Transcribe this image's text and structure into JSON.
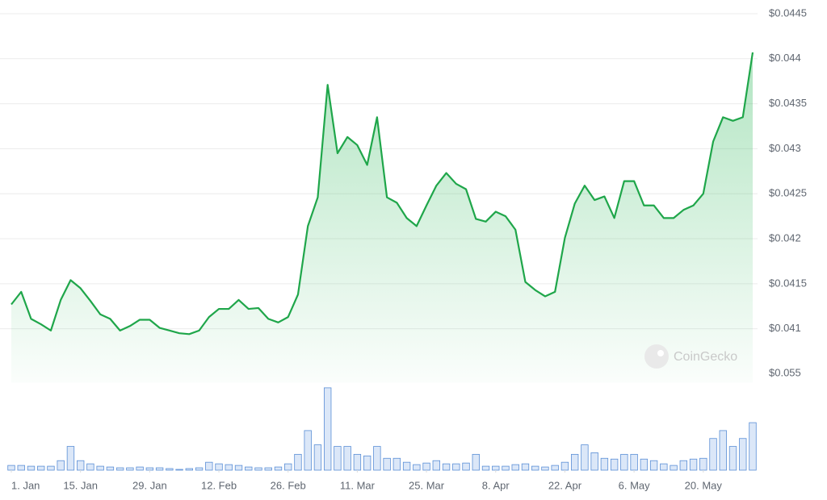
{
  "watermark": "CoinGecko",
  "chart_data": [
    {
      "type": "line",
      "color": "#1fa64a",
      "grid": true,
      "area": true,
      "x": [
        0,
        2,
        4,
        6,
        8,
        10,
        12,
        14,
        16,
        18,
        20,
        22,
        24,
        26,
        28,
        30,
        32,
        34,
        36,
        38,
        40,
        42,
        44,
        46,
        48,
        50,
        52,
        54,
        56,
        58,
        60,
        62,
        64,
        66,
        68,
        70,
        72,
        74,
        76,
        78,
        80,
        82,
        84,
        86,
        88,
        90,
        92,
        94,
        96,
        98,
        100,
        102,
        104,
        106,
        108,
        110,
        112,
        114,
        116,
        118,
        120,
        122,
        124,
        126,
        128,
        130,
        132,
        134,
        136,
        138,
        140,
        142,
        144,
        146,
        148,
        150
      ],
      "values": [
        0.04127,
        0.04141,
        0.04111,
        0.04105,
        0.04098,
        0.04132,
        0.04154,
        0.04145,
        0.04131,
        0.04116,
        0.04111,
        0.04098,
        0.04103,
        0.0411,
        0.0411,
        0.04101,
        0.04098,
        0.04095,
        0.04094,
        0.04098,
        0.04113,
        0.04122,
        0.04122,
        0.04132,
        0.04122,
        0.04123,
        0.04111,
        0.04107,
        0.04113,
        0.04138,
        0.04214,
        0.04246,
        0.04371,
        0.04295,
        0.04313,
        0.04304,
        0.04282,
        0.04335,
        0.04246,
        0.0424,
        0.04223,
        0.04214,
        0.04237,
        0.04259,
        0.04273,
        0.04261,
        0.04255,
        0.04222,
        0.04219,
        0.0423,
        0.04225,
        0.0421,
        0.04152,
        0.04143,
        0.04136,
        0.04141,
        0.04201,
        0.04239,
        0.04259,
        0.04243,
        0.04247,
        0.04223,
        0.04264,
        0.04264,
        0.04237,
        0.04237,
        0.04223,
        0.04223,
        0.04232,
        0.04237,
        0.0425,
        0.04308,
        0.04335,
        0.04331,
        0.04335,
        0.04407
      ],
      "xlim": [
        0,
        150
      ],
      "ylim": [
        0.0404,
        0.0445
      ],
      "yticks": [
        {
          "value": 0.041,
          "label": "$0.041"
        },
        {
          "value": 0.0415,
          "label": "$0.0415"
        },
        {
          "value": 0.042,
          "label": "$0.042"
        },
        {
          "value": 0.0425,
          "label": "$0.0425"
        },
        {
          "value": 0.043,
          "label": "$0.043"
        },
        {
          "value": 0.0435,
          "label": "$0.0435"
        },
        {
          "value": 0.044,
          "label": "$0.044"
        },
        {
          "value": 0.0445,
          "label": "$0.0445"
        }
      ]
    },
    {
      "type": "bar",
      "color": "#5b8fd6",
      "fill": "#dbe7f8",
      "x": [
        0,
        2,
        4,
        6,
        8,
        10,
        12,
        14,
        16,
        18,
        20,
        22,
        24,
        26,
        28,
        30,
        32,
        34,
        36,
        38,
        40,
        42,
        44,
        46,
        48,
        50,
        52,
        54,
        56,
        58,
        60,
        62,
        64,
        66,
        68,
        70,
        72,
        74,
        76,
        78,
        80,
        82,
        84,
        86,
        88,
        90,
        92,
        94,
        96,
        98,
        100,
        102,
        104,
        106,
        108,
        110,
        112,
        114,
        116,
        118,
        120,
        122,
        124,
        126,
        128,
        130,
        132,
        134,
        136,
        138,
        140,
        142,
        144,
        146,
        148,
        150
      ],
      "values": [
        0.003,
        0.003,
        0.0025,
        0.0025,
        0.0025,
        0.006,
        0.015,
        0.006,
        0.004,
        0.0025,
        0.002,
        0.0015,
        0.0015,
        0.002,
        0.0015,
        0.0015,
        0.001,
        0.0005,
        0.001,
        0.0015,
        0.005,
        0.004,
        0.0035,
        0.003,
        0.002,
        0.0015,
        0.0015,
        0.002,
        0.004,
        0.01,
        0.025,
        0.016,
        0.052,
        0.015,
        0.015,
        0.01,
        0.009,
        0.015,
        0.0075,
        0.0075,
        0.005,
        0.0035,
        0.0045,
        0.006,
        0.004,
        0.004,
        0.0045,
        0.01,
        0.0025,
        0.0025,
        0.0025,
        0.0035,
        0.004,
        0.0025,
        0.002,
        0.003,
        0.005,
        0.01,
        0.016,
        0.011,
        0.0075,
        0.007,
        0.01,
        0.01,
        0.007,
        0.006,
        0.004,
        0.003,
        0.006,
        0.007,
        0.0075,
        0.02,
        0.025,
        0.015,
        0.02,
        0.03
      ],
      "xlim": [
        0,
        150
      ],
      "ylim": [
        0,
        0.055
      ],
      "yticks": [
        {
          "value": 0.055,
          "label": "$0.055"
        }
      ],
      "xticks": [
        {
          "value": 0,
          "label": "1. Jan"
        },
        {
          "value": 14,
          "label": "15. Jan"
        },
        {
          "value": 28,
          "label": "29. Jan"
        },
        {
          "value": 42,
          "label": "12. Feb"
        },
        {
          "value": 56,
          "label": "26. Feb"
        },
        {
          "value": 70,
          "label": "11. Mar"
        },
        {
          "value": 84,
          "label": "25. Mar"
        },
        {
          "value": 98,
          "label": "8. Apr"
        },
        {
          "value": 112,
          "label": "22. Apr"
        },
        {
          "value": 126,
          "label": "6. May"
        },
        {
          "value": 140,
          "label": "20. May"
        }
      ]
    }
  ]
}
